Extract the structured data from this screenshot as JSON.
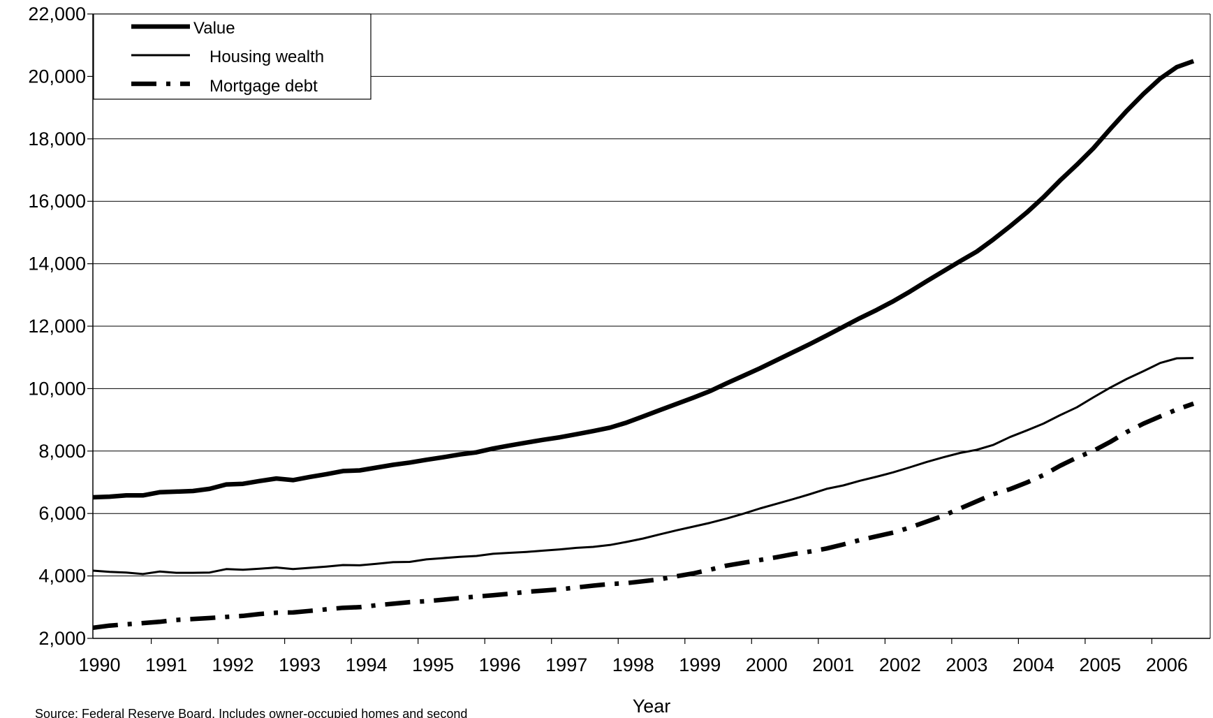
{
  "chart_data": {
    "type": "line",
    "title": "",
    "xlabel": "Year",
    "ylabel": "",
    "ylim": [
      2000,
      22000
    ],
    "yticks": [
      "2,000",
      "4,000",
      "6,000",
      "8,000",
      "10,000",
      "12,000",
      "14,000",
      "16,000",
      "18,000",
      "20,000",
      "22,000"
    ],
    "ytick_values": [
      2000,
      4000,
      6000,
      8000,
      10000,
      12000,
      14000,
      16000,
      18000,
      20000,
      22000
    ],
    "xlim": [
      1990,
      2006.75
    ],
    "xticks": [
      "1990",
      "1991",
      "1992",
      "1993",
      "1994",
      "1995",
      "1996",
      "1997",
      "1998",
      "1999",
      "2000",
      "2001",
      "2002",
      "2003",
      "2004",
      "2005",
      "2006"
    ],
    "grid": "horizontal",
    "legend_position": "top-left",
    "x": [
      1990.0,
      1990.25,
      1990.5,
      1990.75,
      1991.0,
      1991.25,
      1991.5,
      1991.75,
      1992.0,
      1992.25,
      1992.5,
      1992.75,
      1993.0,
      1993.25,
      1993.5,
      1993.75,
      1994.0,
      1994.25,
      1994.5,
      1994.75,
      1995.0,
      1995.25,
      1995.5,
      1995.75,
      1996.0,
      1996.25,
      1996.5,
      1996.75,
      1997.0,
      1997.25,
      1997.5,
      1997.75,
      1998.0,
      1998.25,
      1998.5,
      1998.75,
      1999.0,
      1999.25,
      1999.5,
      1999.75,
      2000.0,
      2000.25,
      2000.5,
      2000.75,
      2001.0,
      2001.25,
      2001.5,
      2001.75,
      2002.0,
      2002.25,
      2002.5,
      2002.75,
      2003.0,
      2003.25,
      2003.5,
      2003.75,
      2004.0,
      2004.25,
      2004.5,
      2004.75,
      2005.0,
      2005.25,
      2005.5,
      2005.75,
      2006.0,
      2006.25,
      2006.5
    ],
    "series": [
      {
        "name": "Value",
        "style": "thick-solid",
        "values": [
          6520,
          6540,
          6580,
          6580,
          6680,
          6700,
          6720,
          6790,
          6930,
          6950,
          7040,
          7120,
          7070,
          7170,
          7260,
          7360,
          7380,
          7470,
          7560,
          7630,
          7720,
          7800,
          7890,
          7960,
          8080,
          8180,
          8270,
          8360,
          8440,
          8540,
          8640,
          8750,
          8910,
          9110,
          9310,
          9510,
          9710,
          9920,
          10170,
          10410,
          10650,
          10910,
          11170,
          11430,
          11700,
          11980,
          12260,
          12520,
          12800,
          13110,
          13440,
          13760,
          14080,
          14390,
          14780,
          15200,
          15640,
          16130,
          16670,
          17170,
          17700,
          18310,
          18900,
          19440,
          19930,
          20300,
          20490
        ]
      },
      {
        "name": "Housing wealth",
        "style": "thin-solid",
        "values": [
          4170,
          4130,
          4110,
          4060,
          4140,
          4100,
          4100,
          4110,
          4220,
          4200,
          4230,
          4270,
          4220,
          4260,
          4300,
          4350,
          4340,
          4390,
          4440,
          4450,
          4530,
          4570,
          4610,
          4640,
          4710,
          4740,
          4770,
          4810,
          4850,
          4900,
          4930,
          4990,
          5090,
          5200,
          5330,
          5460,
          5580,
          5700,
          5840,
          5990,
          6160,
          6310,
          6460,
          6620,
          6790,
          6900,
          7050,
          7180,
          7320,
          7480,
          7650,
          7800,
          7940,
          8040,
          8200,
          8450,
          8660,
          8880,
          9150,
          9400,
          9720,
          10030,
          10310,
          10560,
          10820,
          10970,
          10980
        ]
      },
      {
        "name": "Mortgage debt",
        "style": "thick-dash-dot",
        "values": [
          2340,
          2410,
          2450,
          2490,
          2530,
          2590,
          2620,
          2650,
          2690,
          2720,
          2780,
          2820,
          2830,
          2880,
          2930,
          2980,
          3000,
          3060,
          3110,
          3160,
          3190,
          3240,
          3290,
          3340,
          3380,
          3430,
          3490,
          3530,
          3570,
          3630,
          3690,
          3740,
          3770,
          3830,
          3890,
          3990,
          4080,
          4200,
          4330,
          4420,
          4510,
          4600,
          4700,
          4780,
          4880,
          5010,
          5150,
          5270,
          5390,
          5550,
          5740,
          5930,
          6160,
          6390,
          6620,
          6780,
          6990,
          7230,
          7530,
          7790,
          8010,
          8290,
          8610,
          8880,
          9110,
          9330,
          9520
        ]
      }
    ]
  },
  "source_note": "Source: Federal Reserve Board.  Includes owner-occupied homes and second"
}
